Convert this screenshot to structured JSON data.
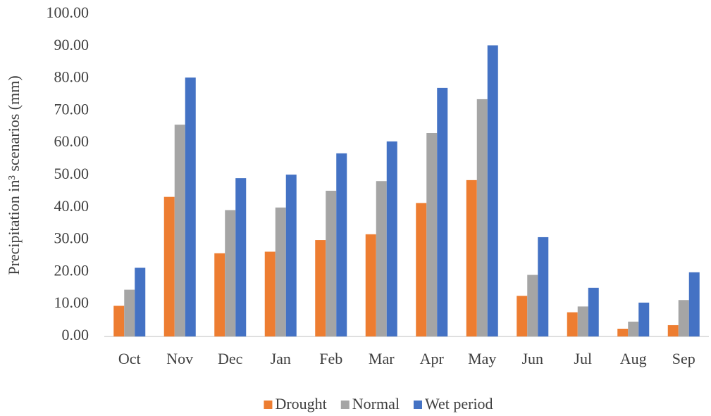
{
  "chart_data": {
    "type": "bar",
    "y_label": "Precipitation in³ scenarios (mm)",
    "categories": [
      "Oct",
      "Nov",
      "Dec",
      "Jan",
      "Feb",
      "Mar",
      "Apr",
      "May",
      "Jun",
      "Jul",
      "Aug",
      "Sep"
    ],
    "series": [
      {
        "name": "Drought",
        "color": "#ed7d31",
        "values": [
          9.5,
          43.3,
          25.8,
          26.3,
          29.9,
          31.7,
          41.4,
          48.5,
          12.6,
          7.5,
          2.4,
          3.5
        ]
      },
      {
        "name": "Normal",
        "color": "#a5a5a5",
        "values": [
          14.5,
          65.7,
          39.2,
          40.0,
          45.2,
          48.2,
          63.1,
          73.6,
          19.1,
          9.3,
          4.6,
          11.3
        ]
      },
      {
        "name": "Wet period",
        "color": "#4472c4",
        "values": [
          21.3,
          80.3,
          49.1,
          50.2,
          56.8,
          60.5,
          77.1,
          90.3,
          30.8,
          15.1,
          10.5,
          19.9
        ]
      }
    ],
    "ylim": [
      0,
      100
    ],
    "yticks": [
      {
        "value": 0,
        "label": "0.00"
      },
      {
        "value": 10,
        "label": "10.00"
      },
      {
        "value": 20,
        "label": "20.00"
      },
      {
        "value": 30,
        "label": "30.00"
      },
      {
        "value": 40,
        "label": "40.00"
      },
      {
        "value": 50,
        "label": "50.00"
      },
      {
        "value": 60,
        "label": "60.00"
      },
      {
        "value": 70,
        "label": "70.00"
      },
      {
        "value": 80,
        "label": "80.00"
      },
      {
        "value": 90,
        "label": "90.00"
      },
      {
        "value": 100,
        "label": "100.00"
      }
    ],
    "grid": false,
    "legend": "bottom"
  }
}
